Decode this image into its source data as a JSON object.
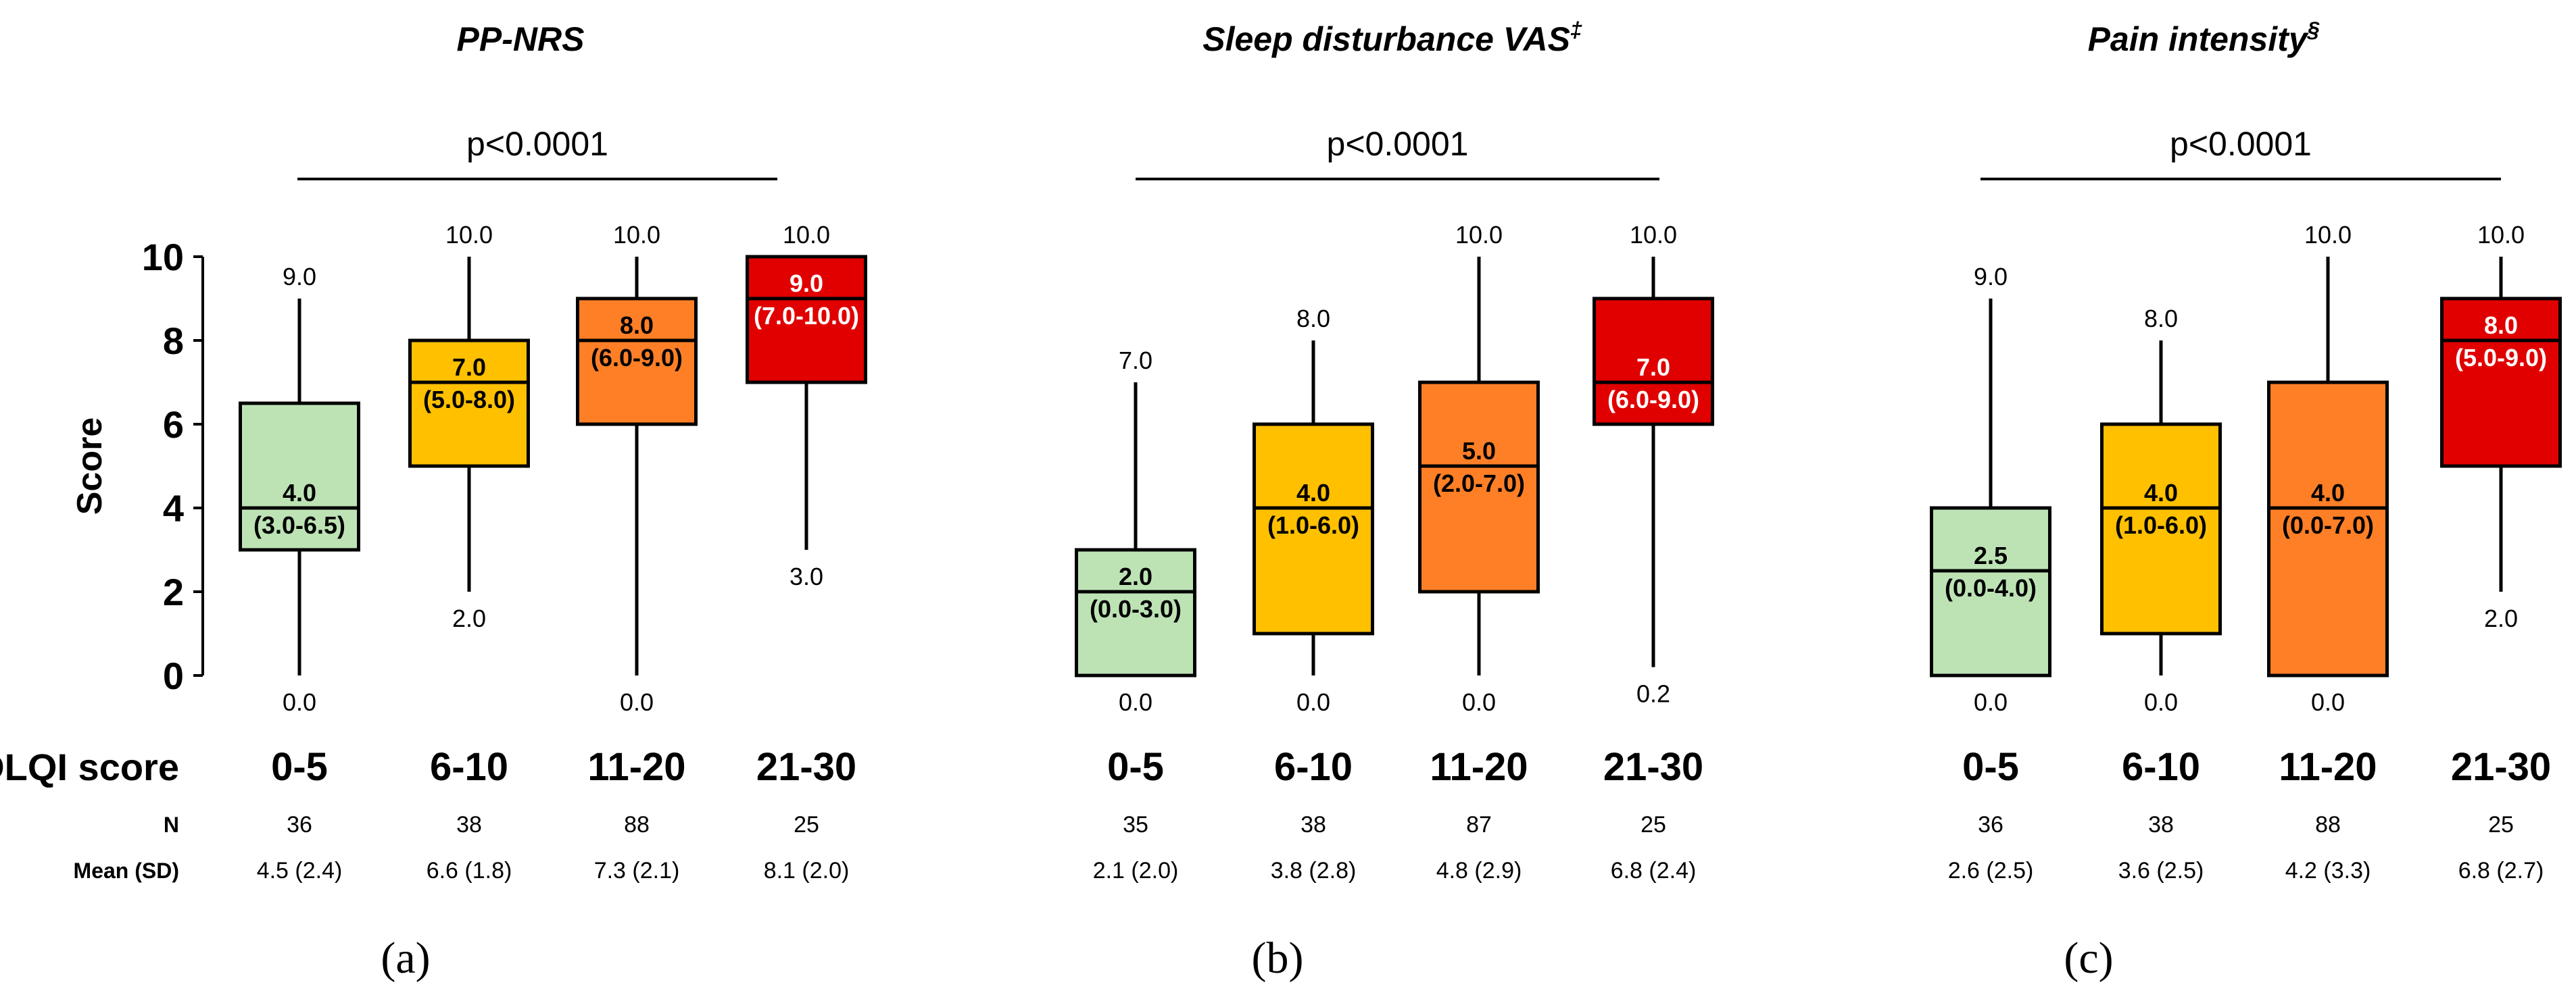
{
  "common": {
    "ylabel": "Score",
    "yticks": [
      0,
      2,
      4,
      6,
      8,
      10
    ],
    "row_header_category": "DLQI score",
    "row_header_n": "N",
    "row_header_mean": "Mean (SD)",
    "colors": {
      "g0": "#bde3b5",
      "g1": "#ffc000",
      "g2": "#ff7f27",
      "g3": "#e00000"
    }
  },
  "chart_data": [
    {
      "type": "boxplot",
      "panel": "(a)",
      "title": "PP-NRS",
      "title_sup": "",
      "pvalue": "p<0.0001",
      "xlabel": "DLQI score",
      "ylabel": "Score",
      "ylim": [
        0,
        10
      ],
      "categories": [
        "0-5",
        "6-10",
        "11-20",
        "21-30"
      ],
      "boxes": [
        {
          "min": 0,
          "q1": 3,
          "median": 4,
          "q3": 6.5,
          "max": 9,
          "min_label": "0.0",
          "max_label": "9.0",
          "median_label": "4.0",
          "iqr_label": "(3.0-6.5)"
        },
        {
          "min": 2,
          "q1": 5,
          "median": 7,
          "q3": 8,
          "max": 10,
          "min_label": "2.0",
          "max_label": "10.0",
          "median_label": "7.0",
          "iqr_label": "(5.0-8.0)"
        },
        {
          "min": 0,
          "q1": 6,
          "median": 8,
          "q3": 9,
          "max": 10,
          "min_label": "0.0",
          "max_label": "10.0",
          "median_label": "8.0",
          "iqr_label": "(6.0-9.0)"
        },
        {
          "min": 3,
          "q1": 7,
          "median": 9,
          "q3": 10,
          "max": 10,
          "min_label": "3.0",
          "max_label": "10.0",
          "median_label": "9.0",
          "iqr_label": "(7.0-10.0)"
        }
      ],
      "n": [
        "36",
        "38",
        "88",
        "25"
      ],
      "mean_sd": [
        "4.5 (2.4)",
        "6.6 (1.8)",
        "7.3 (2.1)",
        "8.1 (2.0)"
      ]
    },
    {
      "type": "boxplot",
      "panel": "(b)",
      "title": "Sleep disturbance VAS",
      "title_sup": "‡",
      "pvalue": "p<0.0001",
      "xlabel": "DLQI score",
      "ylabel": "Score",
      "ylim": [
        0,
        10
      ],
      "categories": [
        "0-5",
        "6-10",
        "11-20",
        "21-30"
      ],
      "boxes": [
        {
          "min": 0,
          "q1": 0,
          "median": 2,
          "q3": 3,
          "max": 7,
          "min_label": "0.0",
          "max_label": "7.0",
          "median_label": "2.0",
          "iqr_label": "(0.0-3.0)"
        },
        {
          "min": 0,
          "q1": 1,
          "median": 4,
          "q3": 6,
          "max": 8,
          "min_label": "0.0",
          "max_label": "8.0",
          "median_label": "4.0",
          "iqr_label": "(1.0-6.0)"
        },
        {
          "min": 0,
          "q1": 2,
          "median": 5,
          "q3": 7,
          "max": 10,
          "min_label": "0.0",
          "max_label": "10.0",
          "median_label": "5.0",
          "iqr_label": "(2.0-7.0)"
        },
        {
          "min": 0.2,
          "q1": 6,
          "median": 7,
          "q3": 9,
          "max": 10,
          "min_label": "0.2",
          "max_label": "10.0",
          "median_label": "7.0",
          "iqr_label": "(6.0-9.0)"
        }
      ],
      "n": [
        "35",
        "38",
        "87",
        "25"
      ],
      "mean_sd": [
        "2.1 (2.0)",
        "3.8 (2.8)",
        "4.8 (2.9)",
        "6.8 (2.4)"
      ]
    },
    {
      "type": "boxplot",
      "panel": "(c)",
      "title": "Pain intensity",
      "title_sup": "§",
      "pvalue": "p<0.0001",
      "xlabel": "DLQI score",
      "ylabel": "Score",
      "ylim": [
        0,
        10
      ],
      "categories": [
        "0-5",
        "6-10",
        "11-20",
        "21-30"
      ],
      "boxes": [
        {
          "min": 0,
          "q1": 0,
          "median": 2.5,
          "q3": 4,
          "max": 9,
          "min_label": "0.0",
          "max_label": "9.0",
          "median_label": "2.5",
          "iqr_label": "(0.0-4.0)"
        },
        {
          "min": 0,
          "q1": 1,
          "median": 4,
          "q3": 6,
          "max": 8,
          "min_label": "0.0",
          "max_label": "8.0",
          "median_label": "4.0",
          "iqr_label": "(1.0-6.0)"
        },
        {
          "min": 0,
          "q1": 0,
          "median": 4,
          "q3": 7,
          "max": 10,
          "min_label": "0.0",
          "max_label": "10.0",
          "median_label": "4.0",
          "iqr_label": "(0.0-7.0)"
        },
        {
          "min": 2,
          "q1": 5,
          "median": 8,
          "q3": 9,
          "max": 10,
          "min_label": "2.0",
          "max_label": "10.0",
          "median_label": "8.0",
          "iqr_label": "(5.0-9.0)"
        }
      ],
      "n": [
        "36",
        "38",
        "88",
        "25"
      ],
      "mean_sd": [
        "2.6 (2.5)",
        "3.6 (2.5)",
        "4.2 (3.3)",
        "6.8 (2.7)"
      ]
    }
  ]
}
